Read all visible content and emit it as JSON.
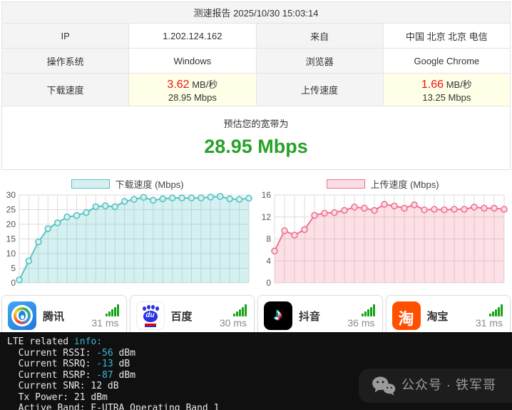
{
  "report": {
    "title": "测速报告 2025/10/30 15:03:14",
    "rows": [
      {
        "label1": "IP",
        "value1": "1.202.124.162",
        "label2": "来自",
        "value2": "中国 北京 北京 电信"
      },
      {
        "label1": "操作系统",
        "value1": "Windows",
        "label2": "浏览器",
        "value2": "Google Chrome"
      }
    ],
    "speed_row": {
      "label1": "下载速度",
      "dl_big": "3.62",
      "dl_unit": "MB/秒",
      "dl_sub": "28.95 Mbps",
      "label2": "上传速度",
      "ul_big": "1.66",
      "ul_unit": "MB/秒",
      "ul_sub": "13.25 Mbps"
    },
    "estimate_label": "预估您的宽带为",
    "estimate_value": "28.95 Mbps"
  },
  "chart_data": [
    {
      "type": "area",
      "legend": "下载速度 (Mbps)",
      "title": "下载速度 (Mbps)",
      "xlabel": "",
      "ylabel": "",
      "ylim": [
        0,
        30
      ],
      "yticks": [
        0,
        5,
        10,
        15,
        20,
        25,
        30
      ],
      "grid": true,
      "legend_position": "top",
      "line_color": "#56c3c3",
      "fill_color": "rgba(86,195,195,0.25)",
      "marker_fill": "#d9f0f0",
      "values": [
        1.0,
        7.5,
        14.0,
        18.5,
        20.5,
        22.5,
        23.0,
        24.0,
        26.0,
        26.3,
        26.0,
        27.8,
        28.5,
        29.2,
        28.2,
        28.7,
        29.0,
        29.0,
        29.0,
        29.0,
        29.3,
        29.5,
        28.7,
        28.5,
        28.9
      ]
    },
    {
      "type": "area",
      "legend": "上传速度 (Mbps)",
      "title": "上传速度 (Mbps)",
      "xlabel": "",
      "ylabel": "",
      "ylim": [
        0,
        16
      ],
      "yticks": [
        0,
        4,
        8,
        12,
        16
      ],
      "grid": true,
      "legend_position": "top",
      "line_color": "#f0718f",
      "fill_color": "rgba(240,113,143,0.22)",
      "marker_fill": "#fbdde5",
      "values": [
        5.8,
        9.5,
        8.7,
        9.7,
        12.3,
        12.7,
        12.8,
        13.2,
        13.8,
        13.6,
        13.2,
        14.3,
        14.0,
        13.6,
        14.2,
        13.3,
        13.4,
        13.3,
        13.4,
        13.4,
        13.8,
        13.6,
        13.6,
        13.4
      ]
    }
  ],
  "ping": {
    "cards": [
      {
        "name": "腾讯",
        "latency": "31 ms",
        "icon": "tencent-icon"
      },
      {
        "name": "百度",
        "latency": "30 ms",
        "icon": "baidu-icon"
      },
      {
        "name": "抖音",
        "latency": "36 ms",
        "icon": "douyin-icon"
      },
      {
        "name": "淘宝",
        "latency": "31 ms",
        "icon": "taobao-icon"
      }
    ],
    "signal_color": "#17a317"
  },
  "terminal": {
    "lines": [
      {
        "pre": "LTE related ",
        "val": "info:",
        "post": ""
      },
      {
        "pre": "  Current RSSI: ",
        "val": "-56",
        "post": " dBm"
      },
      {
        "pre": "  Current RSRQ: ",
        "val": "-13",
        "post": " dB"
      },
      {
        "pre": "  Current RSRP: ",
        "val": "-87",
        "post": " dBm"
      },
      {
        "pre": "  Current SNR: 12 dB",
        "val": "",
        "post": ""
      },
      {
        "pre": "  Tx Power: 21 dBm",
        "val": "",
        "post": ""
      },
      {
        "pre": "  Active Band: E-UTRA Operating Band 1",
        "val": "",
        "post": ""
      }
    ],
    "watermark": "公众号 · 铁军哥"
  },
  "colors": {
    "accent_green": "#28a228",
    "speed_red": "#ee1111",
    "download_teal": "#56c3c3",
    "upload_pink": "#f0718f",
    "terminal_cyan": "#3cb5d6",
    "signal_green": "#17a317"
  }
}
